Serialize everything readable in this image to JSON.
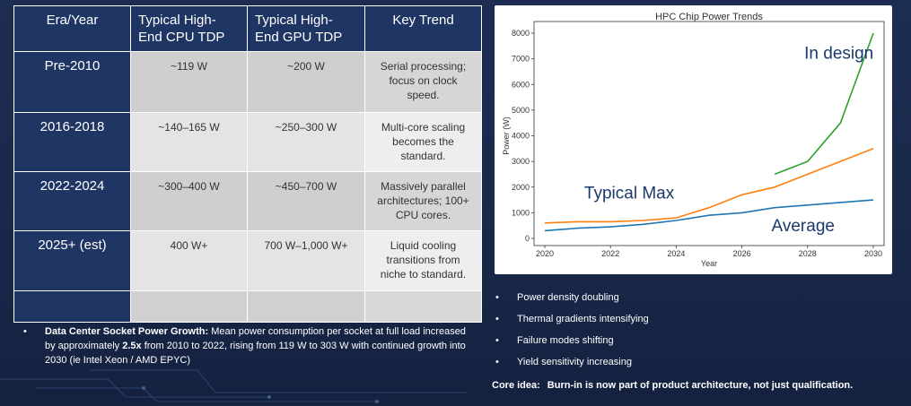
{
  "table": {
    "headers": [
      "Era/Year",
      "Typical High-End CPU TDP",
      "Typical High-End GPU TDP",
      "Key Trend"
    ],
    "header_lines": [
      [
        "Era/Year"
      ],
      [
        "Typical High-",
        "End CPU TDP"
      ],
      [
        "Typical High-",
        "End GPU TDP"
      ],
      [
        "Key Trend"
      ]
    ],
    "rows": [
      {
        "era": "Pre-2010",
        "cpu": "~119 W",
        "gpu": "~200 W",
        "trend_lines": [
          "Serial processing;",
          "focus on clock",
          "speed."
        ]
      },
      {
        "era": "2016-2018",
        "cpu": "~140–165 W",
        "gpu": "~250–300 W",
        "trend_lines": [
          "Multi-core scaling",
          "becomes the",
          "standard."
        ]
      },
      {
        "era": "2022-2024",
        "cpu": "~300–400 W",
        "gpu": "~450–700 W",
        "trend_lines": [
          "Massively parallel",
          "architectures; 100+",
          "CPU cores."
        ]
      },
      {
        "era": "2025+ (est)",
        "cpu": "400 W+",
        "gpu": "700 W–1,000 W+",
        "trend_lines": [
          "Liquid cooling",
          "transitions from",
          "niche to standard."
        ]
      }
    ]
  },
  "note": {
    "bullet": "•",
    "bold": "Data Center Socket Power Growth:",
    "rest1": " Mean power consumption per socket at full load increased by approximately ",
    "bold2": "2.5x",
    "rest2": " from 2010 to 2022, rising from 119 W to 303 W with continued growth into 2030 (ie Intel Xeon / AMD EPYC)"
  },
  "chart_data": {
    "type": "line",
    "title": "HPC Chip Power Trends",
    "xlabel": "Year",
    "ylabel": "Power (W)",
    "xlim": [
      2020,
      2030
    ],
    "ylim": [
      0,
      8000
    ],
    "xticks": [
      2020,
      2022,
      2024,
      2026,
      2028,
      2030
    ],
    "yticks": [
      0,
      1000,
      2000,
      3000,
      4000,
      5000,
      6000,
      7000,
      8000
    ],
    "series": [
      {
        "name": "Average",
        "color": "#1f77b4",
        "x": [
          2020,
          2021,
          2022,
          2023,
          2024,
          2025,
          2026,
          2027,
          2028,
          2029,
          2030
        ],
        "y": [
          300,
          400,
          450,
          550,
          700,
          900,
          1000,
          1200,
          1300,
          1400,
          1500
        ]
      },
      {
        "name": "Typical Max",
        "color": "#ff7f0e",
        "x": [
          2020,
          2021,
          2022,
          2023,
          2024,
          2025,
          2026,
          2027,
          2028,
          2029,
          2030
        ],
        "y": [
          600,
          650,
          650,
          700,
          800,
          1200,
          1700,
          2000,
          2500,
          3000,
          3500
        ]
      },
      {
        "name": "In design",
        "color": "#2ca02c",
        "x": [
          2027,
          2028,
          2029,
          2030
        ],
        "y": [
          2500,
          3000,
          4500,
          8000
        ]
      }
    ],
    "annotations": [
      "In design",
      "Typical Max",
      "Average"
    ]
  },
  "bullets": {
    "marker": "•",
    "items": [
      "Power density doubling",
      "Thermal gradients intensifying",
      "Failure modes shifting",
      "Yield sensitivity increasing"
    ]
  },
  "core": {
    "label": "Core idea:",
    "text": "Burn-in is now part of product architecture, not just qualification."
  }
}
